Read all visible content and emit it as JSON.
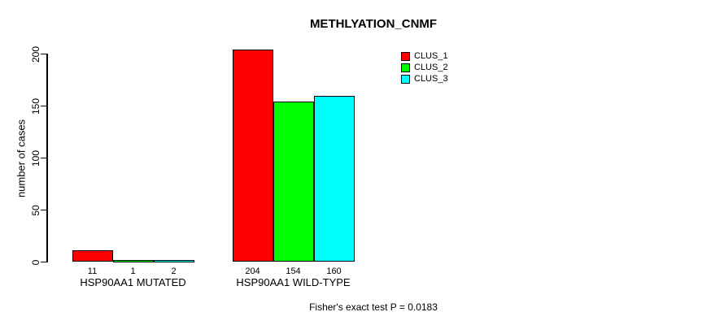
{
  "chart_data": {
    "type": "bar",
    "title": "METHLYATION_CNMF",
    "ylabel": "number of cases",
    "xlabel": "",
    "ylim": [
      0,
      200
    ],
    "yticks": [
      0,
      50,
      100,
      150,
      200
    ],
    "grid": false,
    "legend_position": "top-right",
    "categories": [
      "HSP90AA1 MUTATED",
      "HSP90AA1 WILD-TYPE"
    ],
    "series": [
      {
        "name": "CLUS_1",
        "color": "#ff0000",
        "values": [
          11,
          204
        ]
      },
      {
        "name": "CLUS_2",
        "color": "#00ff00",
        "values": [
          1,
          154
        ]
      },
      {
        "name": "CLUS_3",
        "color": "#00ffff",
        "values": [
          2,
          160
        ]
      }
    ],
    "bar_value_labels": [
      [
        "11",
        "1",
        "2"
      ],
      [
        "204",
        "154",
        "160"
      ]
    ],
    "annotation": "Fisher's exact test P = 0.0183",
    "colors": {
      "background": "#ffffff",
      "axis": "#000000",
      "bar_border": "#000000",
      "text": "#000000"
    }
  }
}
